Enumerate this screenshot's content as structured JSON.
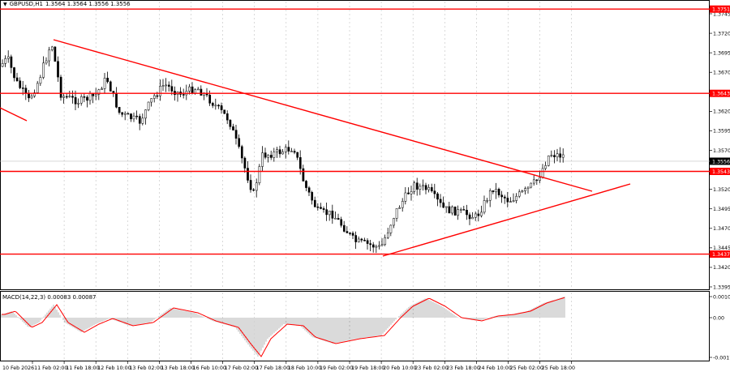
{
  "window": {
    "symbol_label": "GBPUSD,H1",
    "ohlc_label": "1.3564 1.3564 1.3556 1.3556",
    "macd_label": "MACD(14,22,3) 0.00083 0.00087"
  },
  "colors": {
    "level_line": "#ff0000",
    "trend_line": "#ff0000",
    "candle": "#000000",
    "grid": "#c0c0c0",
    "current_price_line": "#c0c0c0",
    "macd_signal": "#ff0000",
    "macd_hist": "#b4b4b4",
    "price_tag_bg": "#ff0000",
    "price_tag_text": "#ffffff",
    "current_tag_bg": "#000000"
  },
  "price_axis": {
    "ticks": [
      "1.3745",
      "1.3720",
      "1.3695",
      "1.3670",
      "1.3645",
      "1.3620",
      "1.3595",
      "1.3570",
      "1.3545",
      "1.3520",
      "1.3495",
      "1.3470",
      "1.3445",
      "1.3420",
      "1.3395"
    ],
    "level_tags": [
      "1.3751",
      "1.3643",
      "1.3543",
      "1.3437"
    ],
    "current_price_tag": "1.3556"
  },
  "macd_axis": {
    "ticks": [
      "0.00101",
      "0.00",
      "-0.00176"
    ]
  },
  "time_axis": {
    "labels": [
      "10 Feb 2026",
      "11 Feb 02:00",
      "11 Feb 18:00",
      "12 Feb 10:00",
      "13 Feb 02:00",
      "13 Feb 18:00",
      "16 Feb 10:00",
      "17 Feb 02:00",
      "17 Feb 18:00",
      "18 Feb 10:00",
      "19 Feb 02:00",
      "19 Feb 18:00",
      "20 Feb 10:00",
      "23 Feb 02:00",
      "23 Feb 18:00",
      "24 Feb 10:00",
      "25 Feb 02:00",
      "25 Feb 18:00"
    ]
  },
  "icons": {
    "dropdown": "dropdown-triangle-icon"
  }
}
